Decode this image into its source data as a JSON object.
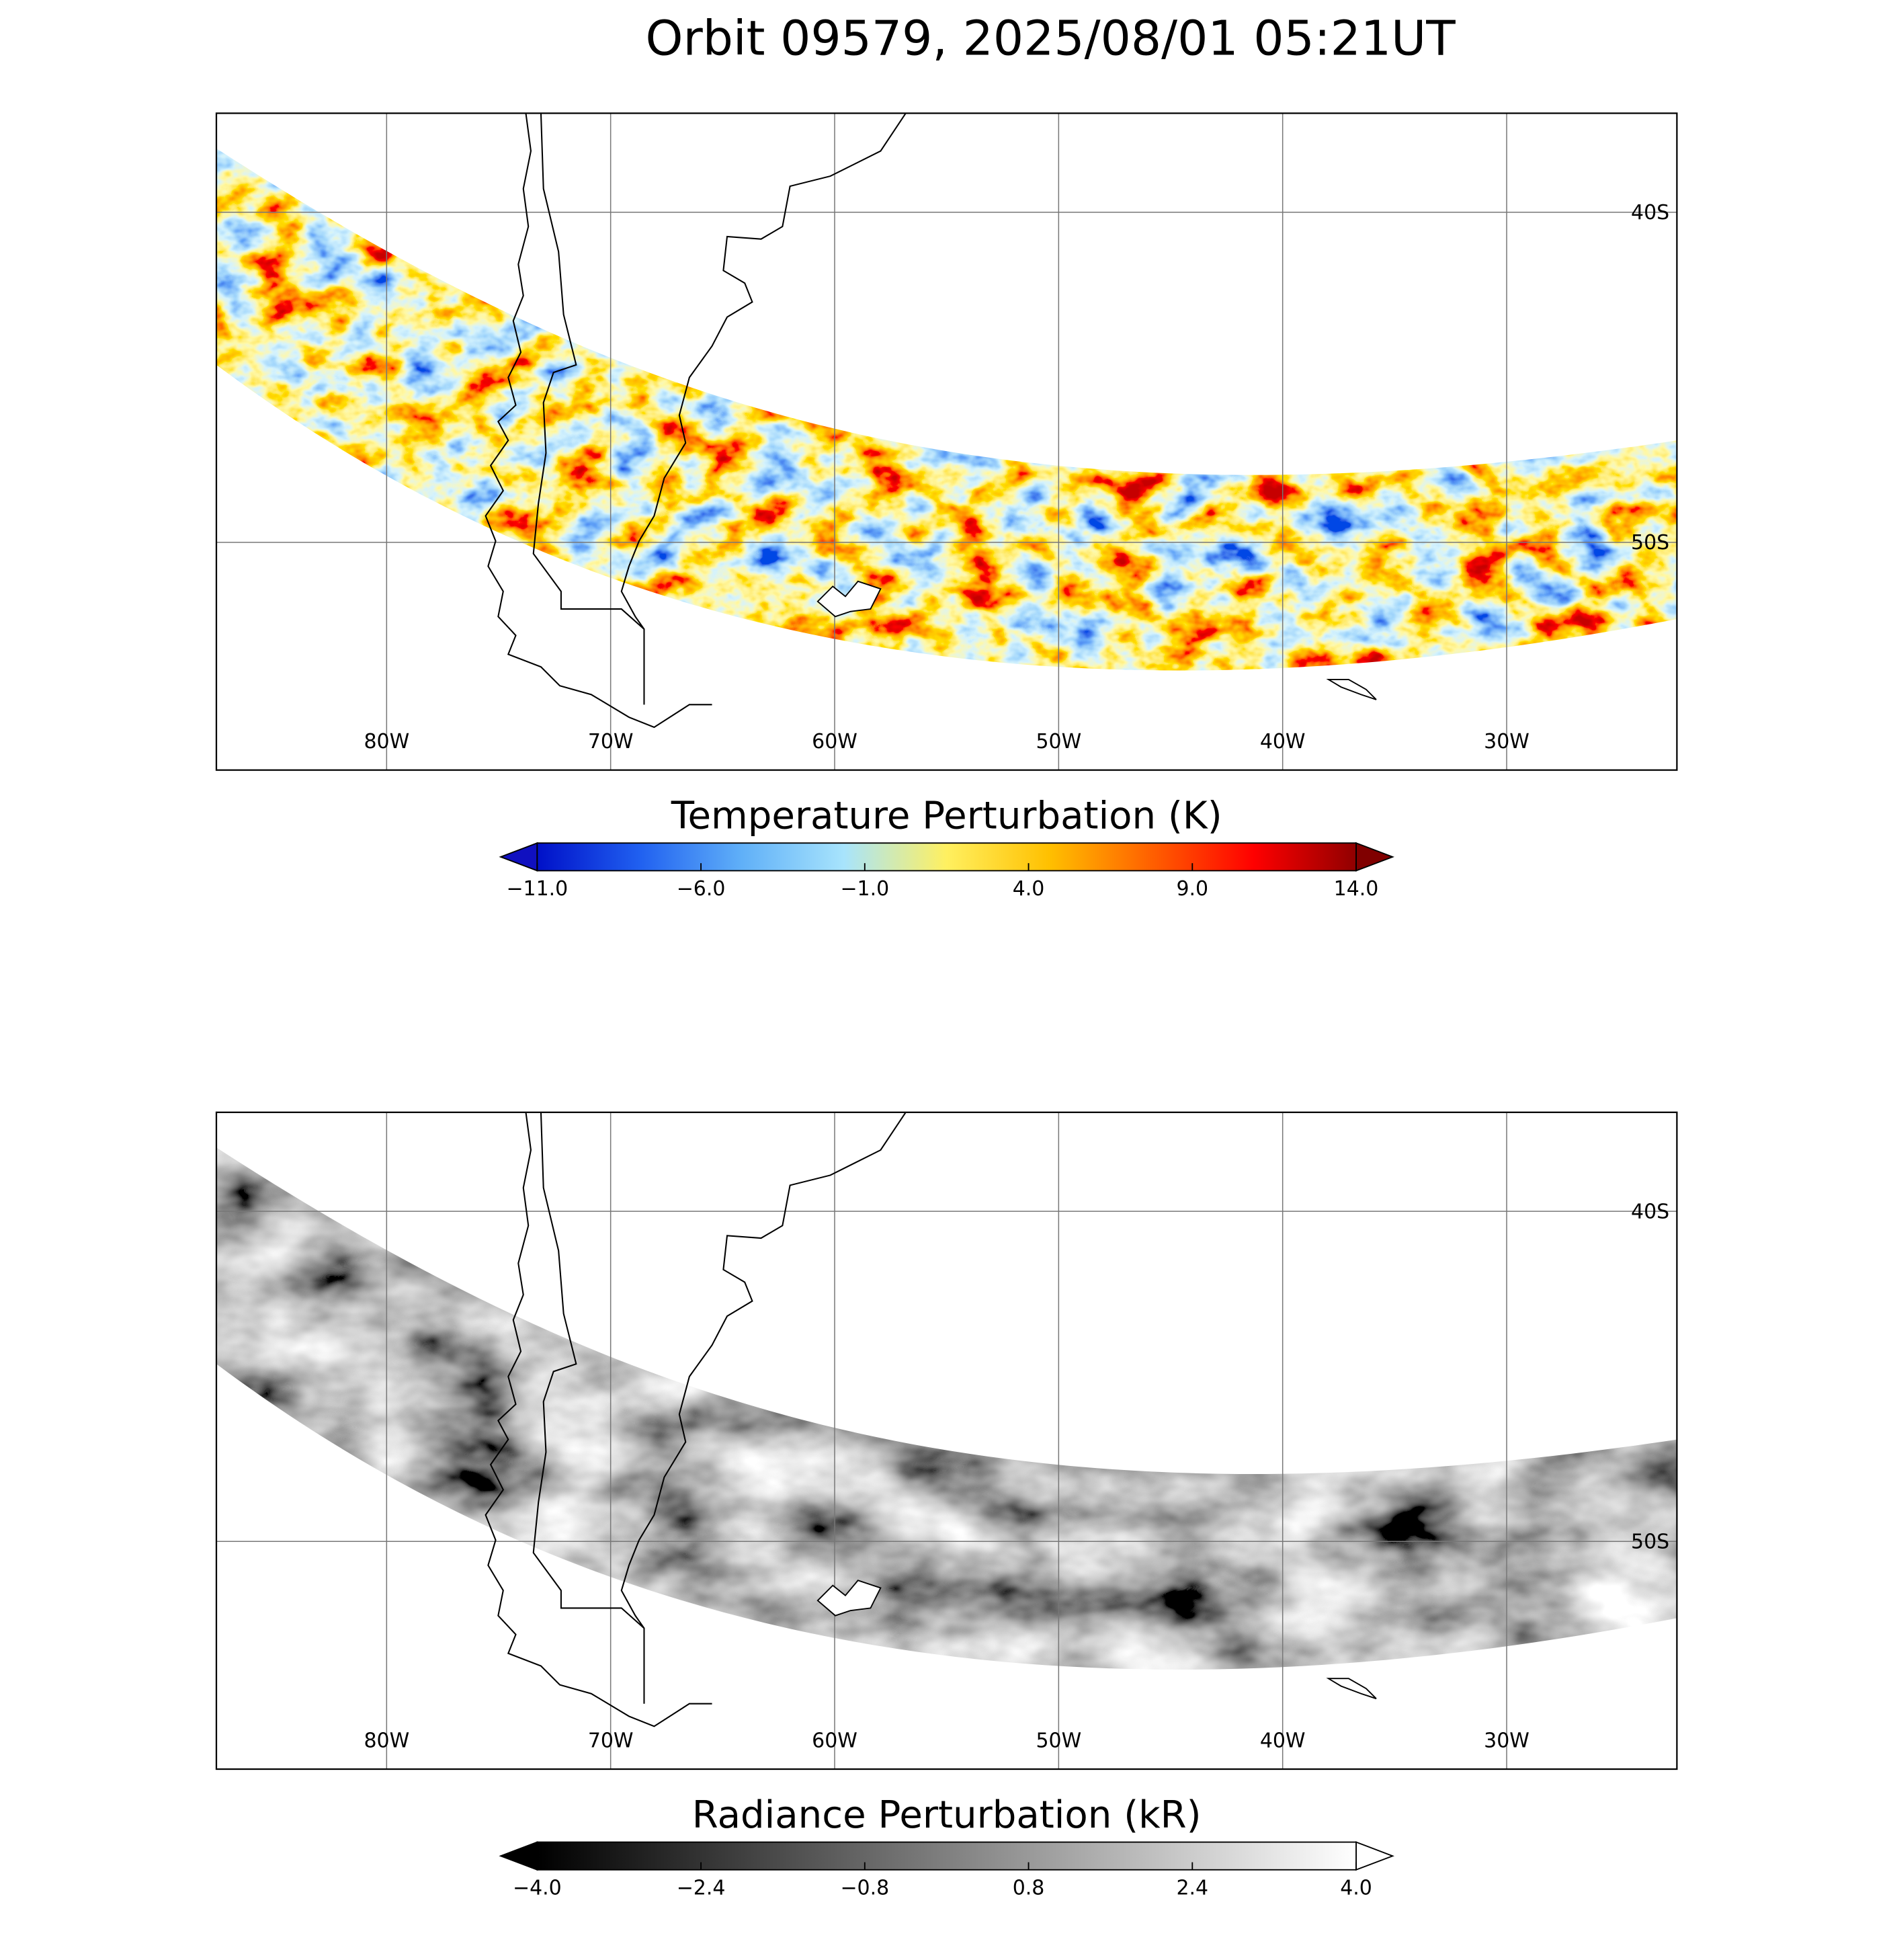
{
  "title": "Orbit 09579, 2025/08/01 05:21UT",
  "panels": [
    {
      "type": "map",
      "xlim": [
        -87.6,
        -22.4
      ],
      "ylim": [
        -56.9,
        -37.0
      ],
      "grid": true,
      "xticks": [
        {
          "value": -80,
          "label": "80W"
        },
        {
          "value": -70,
          "label": "70W"
        },
        {
          "value": -60,
          "label": "60W"
        },
        {
          "value": -50,
          "label": "50W"
        },
        {
          "value": -40,
          "label": "40W"
        },
        {
          "value": -30,
          "label": "30W"
        }
      ],
      "yticks": [
        {
          "value": -40,
          "label": "40S"
        },
        {
          "value": -50,
          "label": "50S"
        }
      ],
      "colorbar": {
        "label": "Temperature Perturbation (K)",
        "lim": [
          -11,
          14
        ],
        "ticks": [
          {
            "value": -11,
            "label": "−11.0"
          },
          {
            "value": -6,
            "label": "−6.0"
          },
          {
            "value": -1,
            "label": "−1.0"
          },
          {
            "value": 4,
            "label": "4.0"
          },
          {
            "value": 9,
            "label": "9.0"
          },
          {
            "value": 14,
            "label": "14.0"
          }
        ],
        "colors": [
          "#0010c8",
          "#2060f0",
          "#60b0f8",
          "#a8e4fc",
          "#fff060",
          "#ffc000",
          "#ff6000",
          "#ff0000",
          "#900000"
        ],
        "extend_colors": [
          "#1010c0",
          "#800000"
        ]
      }
    },
    {
      "type": "map",
      "xlim": [
        -87.6,
        -22.4
      ],
      "ylim": [
        -56.9,
        -37.0
      ],
      "grid": true,
      "xticks": [
        {
          "value": -80,
          "label": "80W"
        },
        {
          "value": -70,
          "label": "70W"
        },
        {
          "value": -60,
          "label": "60W"
        },
        {
          "value": -50,
          "label": "50W"
        },
        {
          "value": -40,
          "label": "40W"
        },
        {
          "value": -30,
          "label": "30W"
        }
      ],
      "yticks": [
        {
          "value": -40,
          "label": "40S"
        },
        {
          "value": -50,
          "label": "50S"
        }
      ],
      "colorbar": {
        "label": "Radiance Perturbation (kR)",
        "lim": [
          -4,
          4
        ],
        "ticks": [
          {
            "value": -4,
            "label": "−4.0"
          },
          {
            "value": -2.4,
            "label": "−2.4"
          },
          {
            "value": -0.8,
            "label": "−0.8"
          },
          {
            "value": 0.8,
            "label": "0.8"
          },
          {
            "value": 2.4,
            "label": "2.4"
          },
          {
            "value": 4,
            "label": "4.0"
          }
        ],
        "colors": [
          "#000000",
          "#ffffff"
        ],
        "extend_colors": [
          "#000000",
          "#ffffff"
        ]
      }
    }
  ]
}
